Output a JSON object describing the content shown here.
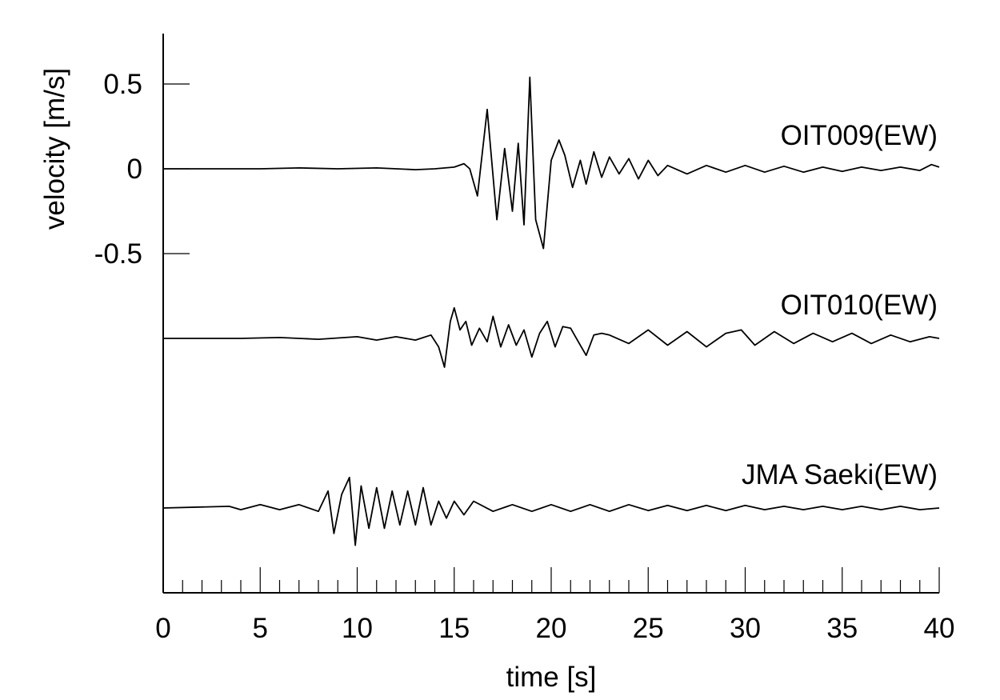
{
  "chart_data": {
    "type": "line",
    "title": "",
    "xlabel": "time [s]",
    "ylabel": "velocity [m/s]",
    "xlim": [
      0,
      40
    ],
    "ylim_top_trace": [
      -0.5,
      0.5
    ],
    "x_ticks": [
      {
        "value": 0,
        "label": "0"
      },
      {
        "value": 5,
        "label": "5"
      },
      {
        "value": 10,
        "label": "10"
      },
      {
        "value": 15,
        "label": "15"
      },
      {
        "value": 20,
        "label": "20"
      },
      {
        "value": 25,
        "label": "25"
      },
      {
        "value": 30,
        "label": "30"
      },
      {
        "value": 35,
        "label": "35"
      },
      {
        "value": 40,
        "label": "40"
      }
    ],
    "y_ticks": [
      {
        "value": 0.5,
        "label": "0.5"
      },
      {
        "value": 0,
        "label": "0"
      },
      {
        "value": -0.5,
        "label": "-0.5"
      }
    ],
    "grid": false,
    "legend": "none",
    "series": [
      {
        "name": "OIT009(EW)",
        "baseline": 0,
        "x": [
          0,
          3,
          5,
          7,
          9,
          11,
          13,
          14,
          15,
          15.5,
          15.8,
          16.2,
          16.7,
          17.2,
          17.6,
          18.0,
          18.3,
          18.6,
          18.9,
          19.2,
          19.6,
          20.0,
          20.4,
          20.7,
          21.1,
          21.5,
          21.8,
          22.2,
          22.6,
          23.0,
          23.5,
          24.0,
          24.5,
          25.0,
          25.5,
          26.0,
          27.0,
          28.0,
          29.0,
          30.0,
          31.0,
          32.0,
          33.0,
          34.0,
          35.0,
          36.0,
          37.0,
          38.0,
          39.0,
          39.6,
          40.0
        ],
        "y": [
          0,
          0,
          0,
          0.005,
          0,
          0.005,
          -0.005,
          0,
          0.01,
          0.03,
          0,
          -0.16,
          0.35,
          -0.3,
          0.12,
          -0.25,
          0.15,
          -0.33,
          0.54,
          -0.3,
          -0.47,
          0.05,
          0.17,
          0.08,
          -0.11,
          0.05,
          -0.09,
          0.1,
          -0.05,
          0.07,
          -0.03,
          0.06,
          -0.06,
          0.05,
          -0.04,
          0.02,
          -0.03,
          0.02,
          -0.02,
          0.02,
          -0.02,
          0.015,
          -0.02,
          0.01,
          -0.015,
          0.01,
          -0.01,
          0.01,
          -0.01,
          0.025,
          0.01
        ]
      },
      {
        "name": "OIT010(EW)",
        "baseline": -1.0,
        "x": [
          0,
          4,
          6,
          8,
          10,
          11,
          12,
          13,
          13.8,
          14.2,
          14.5,
          14.8,
          15.0,
          15.3,
          15.6,
          15.9,
          16.3,
          16.7,
          17.0,
          17.4,
          17.8,
          18.2,
          18.6,
          19.0,
          19.4,
          19.8,
          20.2,
          20.6,
          21.0,
          21.4,
          21.8,
          22.2,
          22.6,
          23.0,
          24.0,
          25.0,
          26.0,
          27.0,
          28.0,
          29.0,
          29.8,
          30.5,
          31.5,
          32.5,
          33.5,
          34.5,
          35.5,
          36.5,
          37.5,
          38.5,
          39.5,
          40.0
        ],
        "y": [
          0,
          0,
          0.005,
          -0.005,
          0.01,
          -0.01,
          0.01,
          -0.01,
          0.02,
          -0.05,
          -0.17,
          0.1,
          0.18,
          0.05,
          0.1,
          -0.04,
          0.06,
          -0.02,
          0.13,
          -0.05,
          0.08,
          -0.04,
          0.05,
          -0.11,
          0.03,
          0.1,
          -0.05,
          0.07,
          0.06,
          -0.02,
          -0.1,
          0.02,
          0.03,
          0.02,
          -0.03,
          0.05,
          -0.04,
          0.04,
          -0.05,
          0.03,
          0.05,
          -0.04,
          0.04,
          -0.03,
          0.03,
          -0.02,
          0.03,
          -0.03,
          0.02,
          -0.02,
          0.01,
          0.0
        ]
      },
      {
        "name": "JMA Saeki(EW)",
        "baseline": -2.0,
        "x": [
          0,
          3.4,
          4,
          5,
          6,
          7,
          8,
          8.5,
          8.8,
          9.2,
          9.6,
          9.9,
          10.2,
          10.6,
          11.0,
          11.4,
          11.8,
          12.2,
          12.6,
          13.0,
          13.4,
          13.8,
          14.2,
          14.6,
          15.0,
          15.5,
          16.0,
          17.0,
          18.0,
          19.0,
          20.0,
          21.0,
          22.0,
          23.0,
          24.0,
          25.0,
          26.0,
          27.0,
          28.0,
          29.0,
          30.0,
          31.0,
          32.0,
          33.0,
          34.0,
          35.0,
          36.0,
          37.0,
          38.0,
          39.0,
          40.0
        ],
        "y": [
          0,
          0.01,
          -0.01,
          0.02,
          -0.01,
          0.02,
          -0.02,
          0.1,
          -0.15,
          0.08,
          0.18,
          -0.22,
          0.13,
          -0.12,
          0.12,
          -0.12,
          0.1,
          -0.1,
          0.1,
          -0.1,
          0.12,
          -0.1,
          0.04,
          -0.06,
          0.04,
          -0.04,
          0.04,
          -0.02,
          0.02,
          -0.02,
          0.02,
          -0.02,
          0.02,
          -0.02,
          0.02,
          -0.015,
          0.015,
          -0.015,
          0.015,
          -0.015,
          0.015,
          -0.01,
          0.01,
          -0.01,
          0.01,
          -0.01,
          0.01,
          -0.01,
          0.01,
          -0.01,
          0.0
        ]
      }
    ]
  }
}
